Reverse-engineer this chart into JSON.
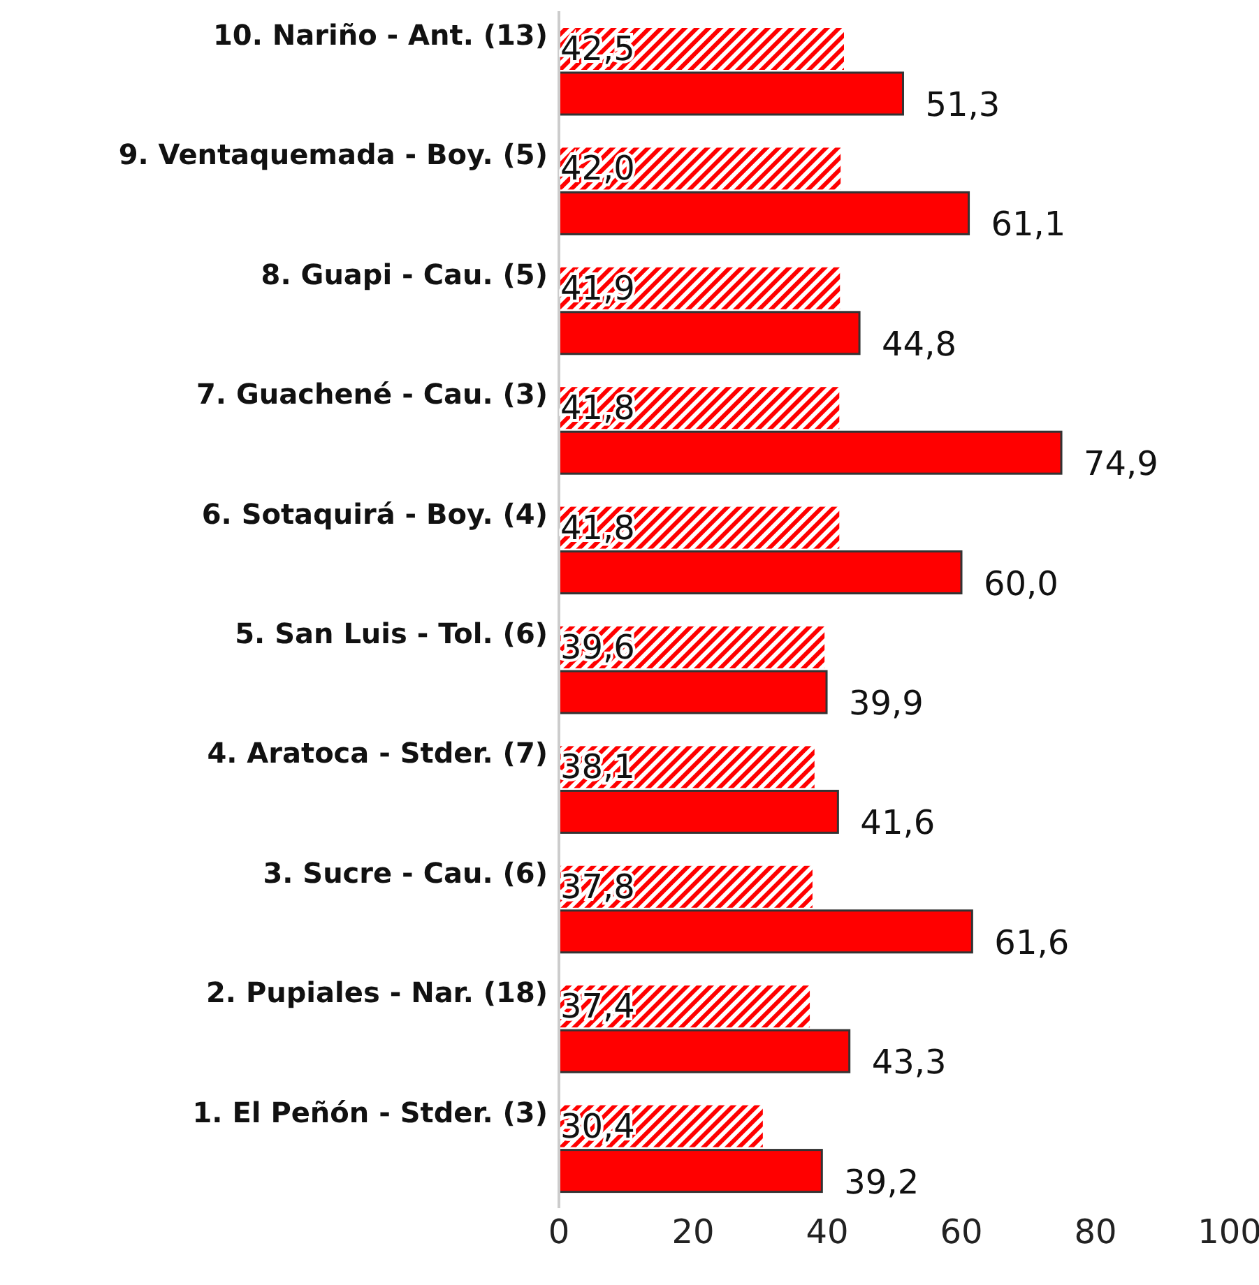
{
  "chart_data": {
    "type": "bar",
    "orientation": "horizontal",
    "categories": [
      "10. Nariño - Ant. (13)",
      "9. Ventaquemada - Boy. (5)",
      "8. Guapi - Cau. (5)",
      "7. Guachené - Cau. (3)",
      "6. Sotaquirá - Boy. (4)",
      "5. San Luis - Tol. (6)",
      "4. Aratoca - Stder. (7)",
      "3. Sucre - Cau. (6)",
      "2. Pupiales - Nar. (18)",
      "1. El Peñón - Stder. (3)"
    ],
    "series": [
      {
        "color": "#ff0000",
        "values": [
          42.5,
          42.0,
          41.9,
          41.8,
          41.8,
          39.6,
          38.1,
          37.8,
          37.4,
          30.4
        ],
        "value_labels": [
          "42,5",
          "42,0",
          "41,9",
          "41,8",
          "41,8",
          "39,6",
          "38,1",
          "37,8",
          "37,4",
          "30,4"
        ]
      },
      {
        "color": "#ff0000",
        "values": [
          51.3,
          61.1,
          44.8,
          74.9,
          60.0,
          39.9,
          41.6,
          61.6,
          43.3,
          39.2
        ],
        "value_labels": [
          "51,3",
          "61,1",
          "44,8",
          "74,9",
          "60,0",
          "39,9",
          "41,6",
          "61,6",
          "43,3",
          "39,2"
        ]
      }
    ],
    "xlim": [
      0,
      100
    ],
    "xticks": [
      0,
      20,
      40,
      60,
      80,
      100
    ],
    "grid": false,
    "legend": false
  }
}
